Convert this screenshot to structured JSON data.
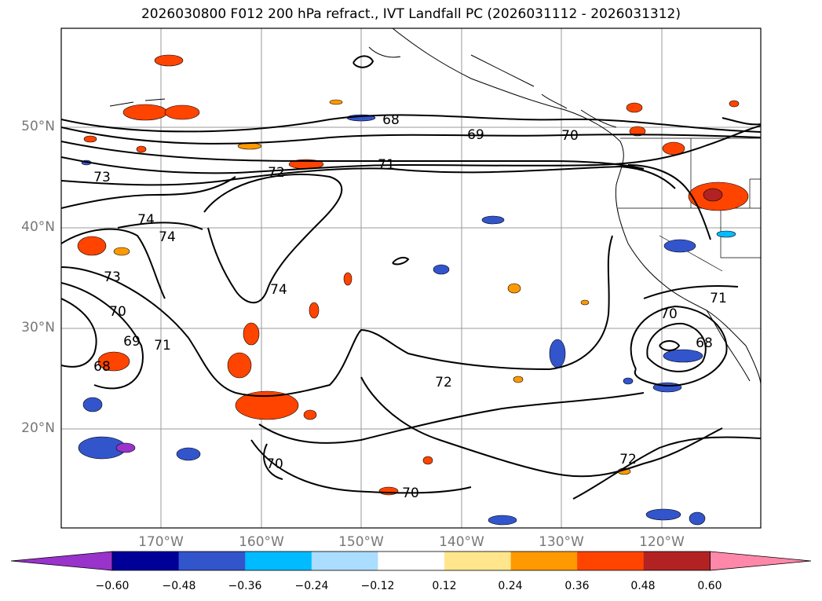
{
  "title": "2026030800 F012 200 hPa refract., IVT Landfall PC (2026031112 - 2026031312)",
  "lat_labels": [
    "50°N",
    "40°N",
    "30°N",
    "20°N"
  ],
  "lon_labels": [
    "170°W",
    "160°W",
    "150°W",
    "140°W",
    "130°W",
    "120°W"
  ],
  "contour_labels": [
    "68",
    "69",
    "70",
    "71",
    "72",
    "73",
    "74",
    "73",
    "74",
    "70",
    "69",
    "71",
    "68",
    "74",
    "72",
    "70",
    "70",
    "72",
    "71",
    "70",
    "68"
  ],
  "colorbar": {
    "ticks": [
      "−0.60",
      "−0.48",
      "−0.36",
      "−0.24",
      "−0.12",
      "0.12",
      "0.24",
      "0.36",
      "0.48",
      "0.60"
    ],
    "colors": [
      "#9933cc",
      "#000099",
      "#3355cc",
      "#00bbff",
      "#aaddff",
      "#ffffff",
      "#ffe68c",
      "#ff9900",
      "#ff4400",
      "#b22222",
      "#ff88aa"
    ]
  }
}
